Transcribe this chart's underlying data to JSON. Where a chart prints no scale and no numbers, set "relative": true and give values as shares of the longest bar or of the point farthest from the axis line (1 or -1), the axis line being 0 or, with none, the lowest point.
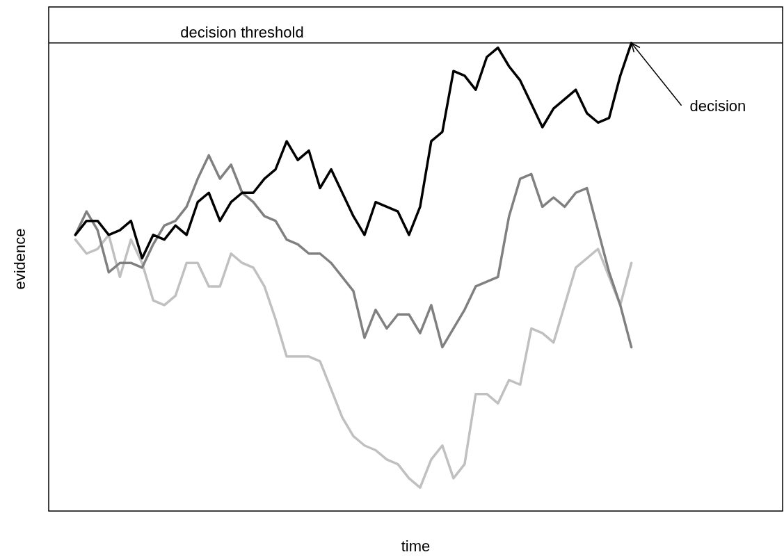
{
  "chart_data": {
    "type": "line",
    "xlabel": "time",
    "ylabel": "evidence",
    "relative": true,
    "marker": "none",
    "line_style": "solid",
    "categories": [
      null,
      null,
      null,
      null,
      null,
      null,
      null,
      null,
      null,
      null,
      null,
      null,
      null,
      null,
      null,
      null,
      null,
      null,
      null,
      null,
      null,
      null,
      null,
      null,
      null,
      null,
      null,
      null,
      null,
      null,
      null,
      null,
      null,
      null,
      null,
      null,
      null,
      null,
      null,
      null,
      null,
      null,
      null,
      null,
      null,
      null,
      null,
      null,
      null,
      null,
      null
    ],
    "series": [
      {
        "color": "#c0c0c0",
        "values": [
          0.58,
          0.55,
          0.56,
          0.59,
          0.5,
          0.58,
          0.53,
          0.45,
          0.44,
          0.46,
          0.53,
          0.53,
          0.48,
          0.48,
          0.55,
          0.53,
          0.52,
          0.48,
          0.41,
          0.33,
          0.33,
          0.33,
          0.32,
          0.26,
          0.2,
          0.16,
          0.14,
          0.13,
          0.11,
          0.1,
          0.07,
          0.05,
          0.11,
          0.14,
          0.07,
          0.1,
          0.25,
          0.25,
          0.23,
          0.28,
          0.27,
          0.39,
          0.38,
          0.36,
          0.44,
          0.52,
          0.54,
          0.56,
          0.5,
          0.44,
          0.53
        ]
      },
      {
        "color": "#808080",
        "values": [
          0.59,
          0.64,
          0.6,
          0.51,
          0.53,
          0.53,
          0.52,
          0.57,
          0.61,
          0.62,
          0.65,
          0.71,
          0.76,
          0.71,
          0.74,
          0.68,
          0.66,
          0.63,
          0.62,
          0.58,
          0.57,
          0.55,
          0.55,
          0.53,
          0.5,
          0.47,
          0.37,
          0.43,
          0.39,
          0.42,
          0.42,
          0.38,
          0.44,
          0.35,
          0.39,
          0.43,
          0.48,
          0.49,
          0.5,
          0.63,
          0.71,
          0.72,
          0.65,
          0.67,
          0.65,
          0.68,
          0.69,
          0.6,
          0.51,
          0.44,
          0.35
        ]
      },
      {
        "color": "#000000",
        "values": [
          0.59,
          0.62,
          0.62,
          0.59,
          0.6,
          0.62,
          0.54,
          0.59,
          0.58,
          0.61,
          0.59,
          0.66,
          0.68,
          0.62,
          0.66,
          0.68,
          0.68,
          0.71,
          0.73,
          0.79,
          0.75,
          0.77,
          0.69,
          0.73,
          0.68,
          0.63,
          0.59,
          0.66,
          0.65,
          0.64,
          0.59,
          0.65,
          0.79,
          0.81,
          0.94,
          0.93,
          0.9,
          0.97,
          0.99,
          0.95,
          0.92,
          0.87,
          0.82,
          0.86,
          0.88,
          0.9,
          0.85,
          0.83,
          0.84,
          0.93,
          1
        ]
      }
    ],
    "ref_lines": [
      {
        "axis": "y",
        "value": 1,
        "label": "decision threshold",
        "color": "#000000"
      }
    ],
    "annotations": [
      "decision"
    ]
  }
}
